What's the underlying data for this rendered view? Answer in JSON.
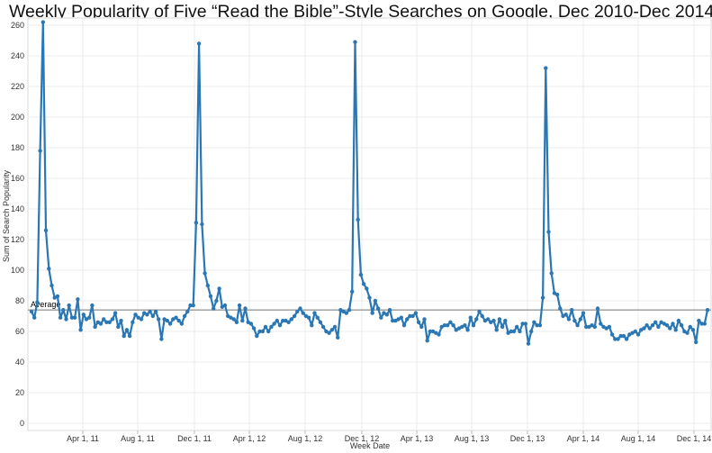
{
  "chart_data": {
    "type": "line",
    "title": "Weekly Popularity of Five “Read the Bible”-Style Searches on Google, Dec 2010-Dec 2014",
    "xlabel": "Week Date",
    "ylabel": "Sum of Search Popularity",
    "ylim": [
      0,
      265
    ],
    "y_ticks": [
      "0",
      "20",
      "40",
      "60",
      "80",
      "100",
      "120",
      "140",
      "160",
      "180",
      "200",
      "220",
      "240",
      "260"
    ],
    "x_tick_labels": [
      "Apr 1, 11",
      "Aug 1, 11",
      "Dec 1, 11",
      "Apr 1, 12",
      "Aug 1, 12",
      "Dec 1, 12",
      "Apr 1, 13",
      "Aug 1, 13",
      "Dec 1, 13",
      "Apr 1, 14",
      "Aug 1, 14",
      "Dec 1, 14"
    ],
    "reference_line": {
      "label": "Average",
      "value": 74
    },
    "grid": true,
    "line_color": "#2a77b4",
    "series": [
      {
        "values": [
          73,
          69,
          79,
          178,
          262,
          126,
          101,
          90,
          82,
          83,
          69,
          74,
          68,
          77,
          69,
          69,
          81,
          61,
          71,
          68,
          69,
          77,
          63,
          66,
          65,
          68,
          66,
          66,
          68,
          72,
          63,
          67,
          57,
          61,
          57,
          66,
          71,
          69,
          68,
          72,
          71,
          73,
          70,
          73,
          68,
          55,
          68,
          67,
          65,
          68,
          69,
          67,
          65,
          70,
          73,
          77,
          77,
          131,
          248,
          130,
          98,
          90,
          83,
          75,
          80,
          88,
          76,
          77,
          70,
          69,
          68,
          66,
          77,
          67,
          75,
          66,
          65,
          62,
          57,
          60,
          60,
          63,
          60,
          63,
          65,
          67,
          64,
          67,
          67,
          66,
          68,
          70,
          73,
          75,
          72,
          70,
          69,
          64,
          72,
          69,
          66,
          63,
          60,
          59,
          61,
          63,
          56,
          74,
          73,
          72,
          74,
          86,
          249,
          133,
          97,
          91,
          88,
          82,
          72,
          80,
          75,
          69,
          72,
          71,
          74,
          67,
          67,
          68,
          69,
          64,
          68,
          70,
          70,
          72,
          66,
          63,
          68,
          54,
          60,
          60,
          59,
          58,
          63,
          64,
          64,
          66,
          64,
          61,
          62,
          63,
          64,
          61,
          69,
          64,
          68,
          73,
          70,
          67,
          68,
          66,
          67,
          61,
          68,
          63,
          67,
          59,
          60,
          60,
          63,
          60,
          65,
          65,
          52,
          60,
          66,
          64,
          64,
          82,
          232,
          125,
          98,
          85,
          84,
          75,
          70,
          71,
          68,
          74,
          67,
          64,
          68,
          72,
          63,
          63,
          64,
          63,
          75,
          65,
          63,
          62,
          63,
          58,
          55,
          55,
          57,
          57,
          55,
          58,
          59,
          60,
          58,
          61,
          62,
          64,
          62,
          64,
          66,
          63,
          66,
          65,
          64,
          62,
          65,
          61,
          67,
          64,
          60,
          59,
          63,
          61,
          53,
          67,
          65,
          65,
          74
        ]
      }
    ]
  }
}
